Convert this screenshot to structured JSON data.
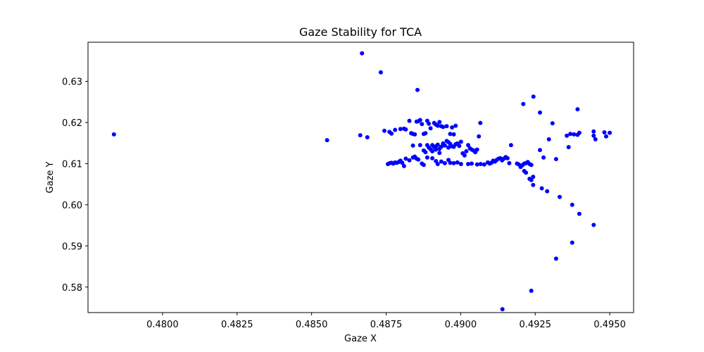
{
  "chart_data": {
    "type": "scatter",
    "title": "Gaze Stability for TCA",
    "xlabel": "Gaze X",
    "ylabel": "Gaze Y",
    "xlim": [
      0.4775,
      0.4958
    ],
    "ylim": [
      0.5738,
      0.6395
    ],
    "x_ticks": [
      0.48,
      0.4825,
      0.485,
      0.4875,
      0.49,
      0.4925,
      0.495
    ],
    "x_tick_labels": [
      "0.4800",
      "0.4825",
      "0.4850",
      "0.4875",
      "0.4900",
      "0.4925",
      "0.4950"
    ],
    "y_ticks": [
      0.58,
      0.59,
      0.6,
      0.61,
      0.62,
      0.63
    ],
    "y_tick_labels": [
      "0.58",
      "0.59",
      "0.60",
      "0.61",
      "0.62",
      "0.63"
    ],
    "grid": false,
    "marker_color": "#0000ff",
    "points": [
      [
        0.47837,
        0.6171
      ],
      [
        0.48552,
        0.6157
      ],
      [
        0.48663,
        0.6169
      ],
      [
        0.48687,
        0.6164
      ],
      [
        0.48669,
        0.6368
      ],
      [
        0.48732,
        0.6322
      ],
      [
        0.48855,
        0.6279
      ],
      [
        0.48744,
        0.618
      ],
      [
        0.48761,
        0.6177
      ],
      [
        0.48768,
        0.6173
      ],
      [
        0.4878,
        0.6182
      ],
      [
        0.48798,
        0.6184
      ],
      [
        0.4881,
        0.6185
      ],
      [
        0.48816,
        0.6183
      ],
      [
        0.48828,
        0.6204
      ],
      [
        0.48834,
        0.6174
      ],
      [
        0.4884,
        0.6172
      ],
      [
        0.48846,
        0.6171
      ],
      [
        0.48852,
        0.6202
      ],
      [
        0.48858,
        0.6203
      ],
      [
        0.48864,
        0.6206
      ],
      [
        0.4887,
        0.6196
      ],
      [
        0.48876,
        0.6172
      ],
      [
        0.48882,
        0.6174
      ],
      [
        0.48888,
        0.6204
      ],
      [
        0.48893,
        0.6197
      ],
      [
        0.48899,
        0.6186
      ],
      [
        0.48911,
        0.6199
      ],
      [
        0.48917,
        0.6195
      ],
      [
        0.48923,
        0.6192
      ],
      [
        0.48929,
        0.6201
      ],
      [
        0.48935,
        0.6191
      ],
      [
        0.48941,
        0.6189
      ],
      [
        0.48953,
        0.6191
      ],
      [
        0.48971,
        0.6188
      ],
      [
        0.48983,
        0.6192
      ],
      [
        0.48977,
        0.6171
      ],
      [
        0.48965,
        0.6172
      ],
      [
        0.4884,
        0.6144
      ],
      [
        0.48864,
        0.6145
      ],
      [
        0.48876,
        0.6132
      ],
      [
        0.48882,
        0.6128
      ],
      [
        0.48888,
        0.6145
      ],
      [
        0.48893,
        0.6139
      ],
      [
        0.48899,
        0.6135
      ],
      [
        0.48905,
        0.6145
      ],
      [
        0.48911,
        0.614
      ],
      [
        0.48917,
        0.6142
      ],
      [
        0.48923,
        0.6146
      ],
      [
        0.48929,
        0.6136
      ],
      [
        0.48935,
        0.6141
      ],
      [
        0.48941,
        0.6148
      ],
      [
        0.48947,
        0.6144
      ],
      [
        0.48953,
        0.6155
      ],
      [
        0.48959,
        0.6152
      ],
      [
        0.48965,
        0.6148
      ],
      [
        0.48971,
        0.6142
      ],
      [
        0.48977,
        0.6141
      ],
      [
        0.48983,
        0.6147
      ],
      [
        0.48989,
        0.6149
      ],
      [
        0.48995,
        0.6143
      ],
      [
        0.49001,
        0.6153
      ],
      [
        0.49007,
        0.6125
      ],
      [
        0.49013,
        0.612
      ],
      [
        0.49019,
        0.613
      ],
      [
        0.49025,
        0.6145
      ],
      [
        0.49031,
        0.6137
      ],
      [
        0.49037,
        0.6134
      ],
      [
        0.49043,
        0.6132
      ],
      [
        0.49049,
        0.6128
      ],
      [
        0.49055,
        0.6134
      ],
      [
        0.49061,
        0.6166
      ],
      [
        0.49066,
        0.6199
      ],
      [
        0.48905,
        0.613
      ],
      [
        0.48917,
        0.6134
      ],
      [
        0.48929,
        0.6126
      ],
      [
        0.48941,
        0.6149
      ],
      [
        0.48959,
        0.6139
      ],
      [
        0.48756,
        0.6099
      ],
      [
        0.48762,
        0.6101
      ],
      [
        0.48768,
        0.6102
      ],
      [
        0.48774,
        0.61
      ],
      [
        0.4878,
        0.6103
      ],
      [
        0.48786,
        0.6102
      ],
      [
        0.48792,
        0.6104
      ],
      [
        0.48798,
        0.6107
      ],
      [
        0.48804,
        0.6102
      ],
      [
        0.4881,
        0.6094
      ],
      [
        0.48816,
        0.6112
      ],
      [
        0.48828,
        0.6108
      ],
      [
        0.4884,
        0.6115
      ],
      [
        0.48846,
        0.6117
      ],
      [
        0.48852,
        0.6112
      ],
      [
        0.48858,
        0.611
      ],
      [
        0.4887,
        0.61
      ],
      [
        0.48876,
        0.6097
      ],
      [
        0.48888,
        0.6115
      ],
      [
        0.48905,
        0.6113
      ],
      [
        0.48917,
        0.6106
      ],
      [
        0.48923,
        0.6099
      ],
      [
        0.48935,
        0.6105
      ],
      [
        0.48947,
        0.6101
      ],
      [
        0.48959,
        0.6109
      ],
      [
        0.48965,
        0.6102
      ],
      [
        0.48977,
        0.6101
      ],
      [
        0.48989,
        0.6103
      ],
      [
        0.49001,
        0.6099
      ],
      [
        0.49025,
        0.6099
      ],
      [
        0.49037,
        0.61
      ],
      [
        0.49055,
        0.6098
      ],
      [
        0.49067,
        0.6099
      ],
      [
        0.49079,
        0.6098
      ],
      [
        0.49091,
        0.6103
      ],
      [
        0.49097,
        0.61
      ],
      [
        0.49103,
        0.6102
      ],
      [
        0.49109,
        0.6107
      ],
      [
        0.49115,
        0.6105
      ],
      [
        0.49121,
        0.6109
      ],
      [
        0.49127,
        0.6112
      ],
      [
        0.49133,
        0.6113
      ],
      [
        0.49139,
        0.6108
      ],
      [
        0.49145,
        0.6112
      ],
      [
        0.49151,
        0.6116
      ],
      [
        0.49157,
        0.6113
      ],
      [
        0.49163,
        0.6101
      ],
      [
        0.49169,
        0.6145
      ],
      [
        0.49189,
        0.61
      ],
      [
        0.49195,
        0.6098
      ],
      [
        0.49201,
        0.6092
      ],
      [
        0.49207,
        0.6096
      ],
      [
        0.49213,
        0.61
      ],
      [
        0.49219,
        0.6101
      ],
      [
        0.49225,
        0.6104
      ],
      [
        0.49231,
        0.6099
      ],
      [
        0.49237,
        0.6097
      ],
      [
        0.49213,
        0.6082
      ],
      [
        0.49219,
        0.6078
      ],
      [
        0.49231,
        0.6063
      ],
      [
        0.49237,
        0.606
      ],
      [
        0.49243,
        0.6068
      ],
      [
        0.49243,
        0.6048
      ],
      [
        0.49272,
        0.604
      ],
      [
        0.4929,
        0.6033
      ],
      [
        0.49332,
        0.6019
      ],
      [
        0.49374,
        0.6
      ],
      [
        0.49398,
        0.5978
      ],
      [
        0.49446,
        0.5951
      ],
      [
        0.49374,
        0.5908
      ],
      [
        0.4932,
        0.5869
      ],
      [
        0.49237,
        0.5791
      ],
      [
        0.4914,
        0.5746
      ],
      [
        0.4921,
        0.6245
      ],
      [
        0.49244,
        0.6263
      ],
      [
        0.49266,
        0.6224
      ],
      [
        0.49308,
        0.6198
      ],
      [
        0.49392,
        0.6232
      ],
      [
        0.49296,
        0.6159
      ],
      [
        0.49278,
        0.6115
      ],
      [
        0.49266,
        0.6133
      ],
      [
        0.4932,
        0.6111
      ],
      [
        0.49356,
        0.6168
      ],
      [
        0.49368,
        0.6172
      ],
      [
        0.4938,
        0.6171
      ],
      [
        0.49392,
        0.617
      ],
      [
        0.49398,
        0.6175
      ],
      [
        0.49362,
        0.614
      ],
      [
        0.49446,
        0.6178
      ],
      [
        0.49446,
        0.6168
      ],
      [
        0.49452,
        0.6159
      ],
      [
        0.49482,
        0.6176
      ],
      [
        0.49488,
        0.6166
      ],
      [
        0.495,
        0.6175
      ]
    ]
  }
}
